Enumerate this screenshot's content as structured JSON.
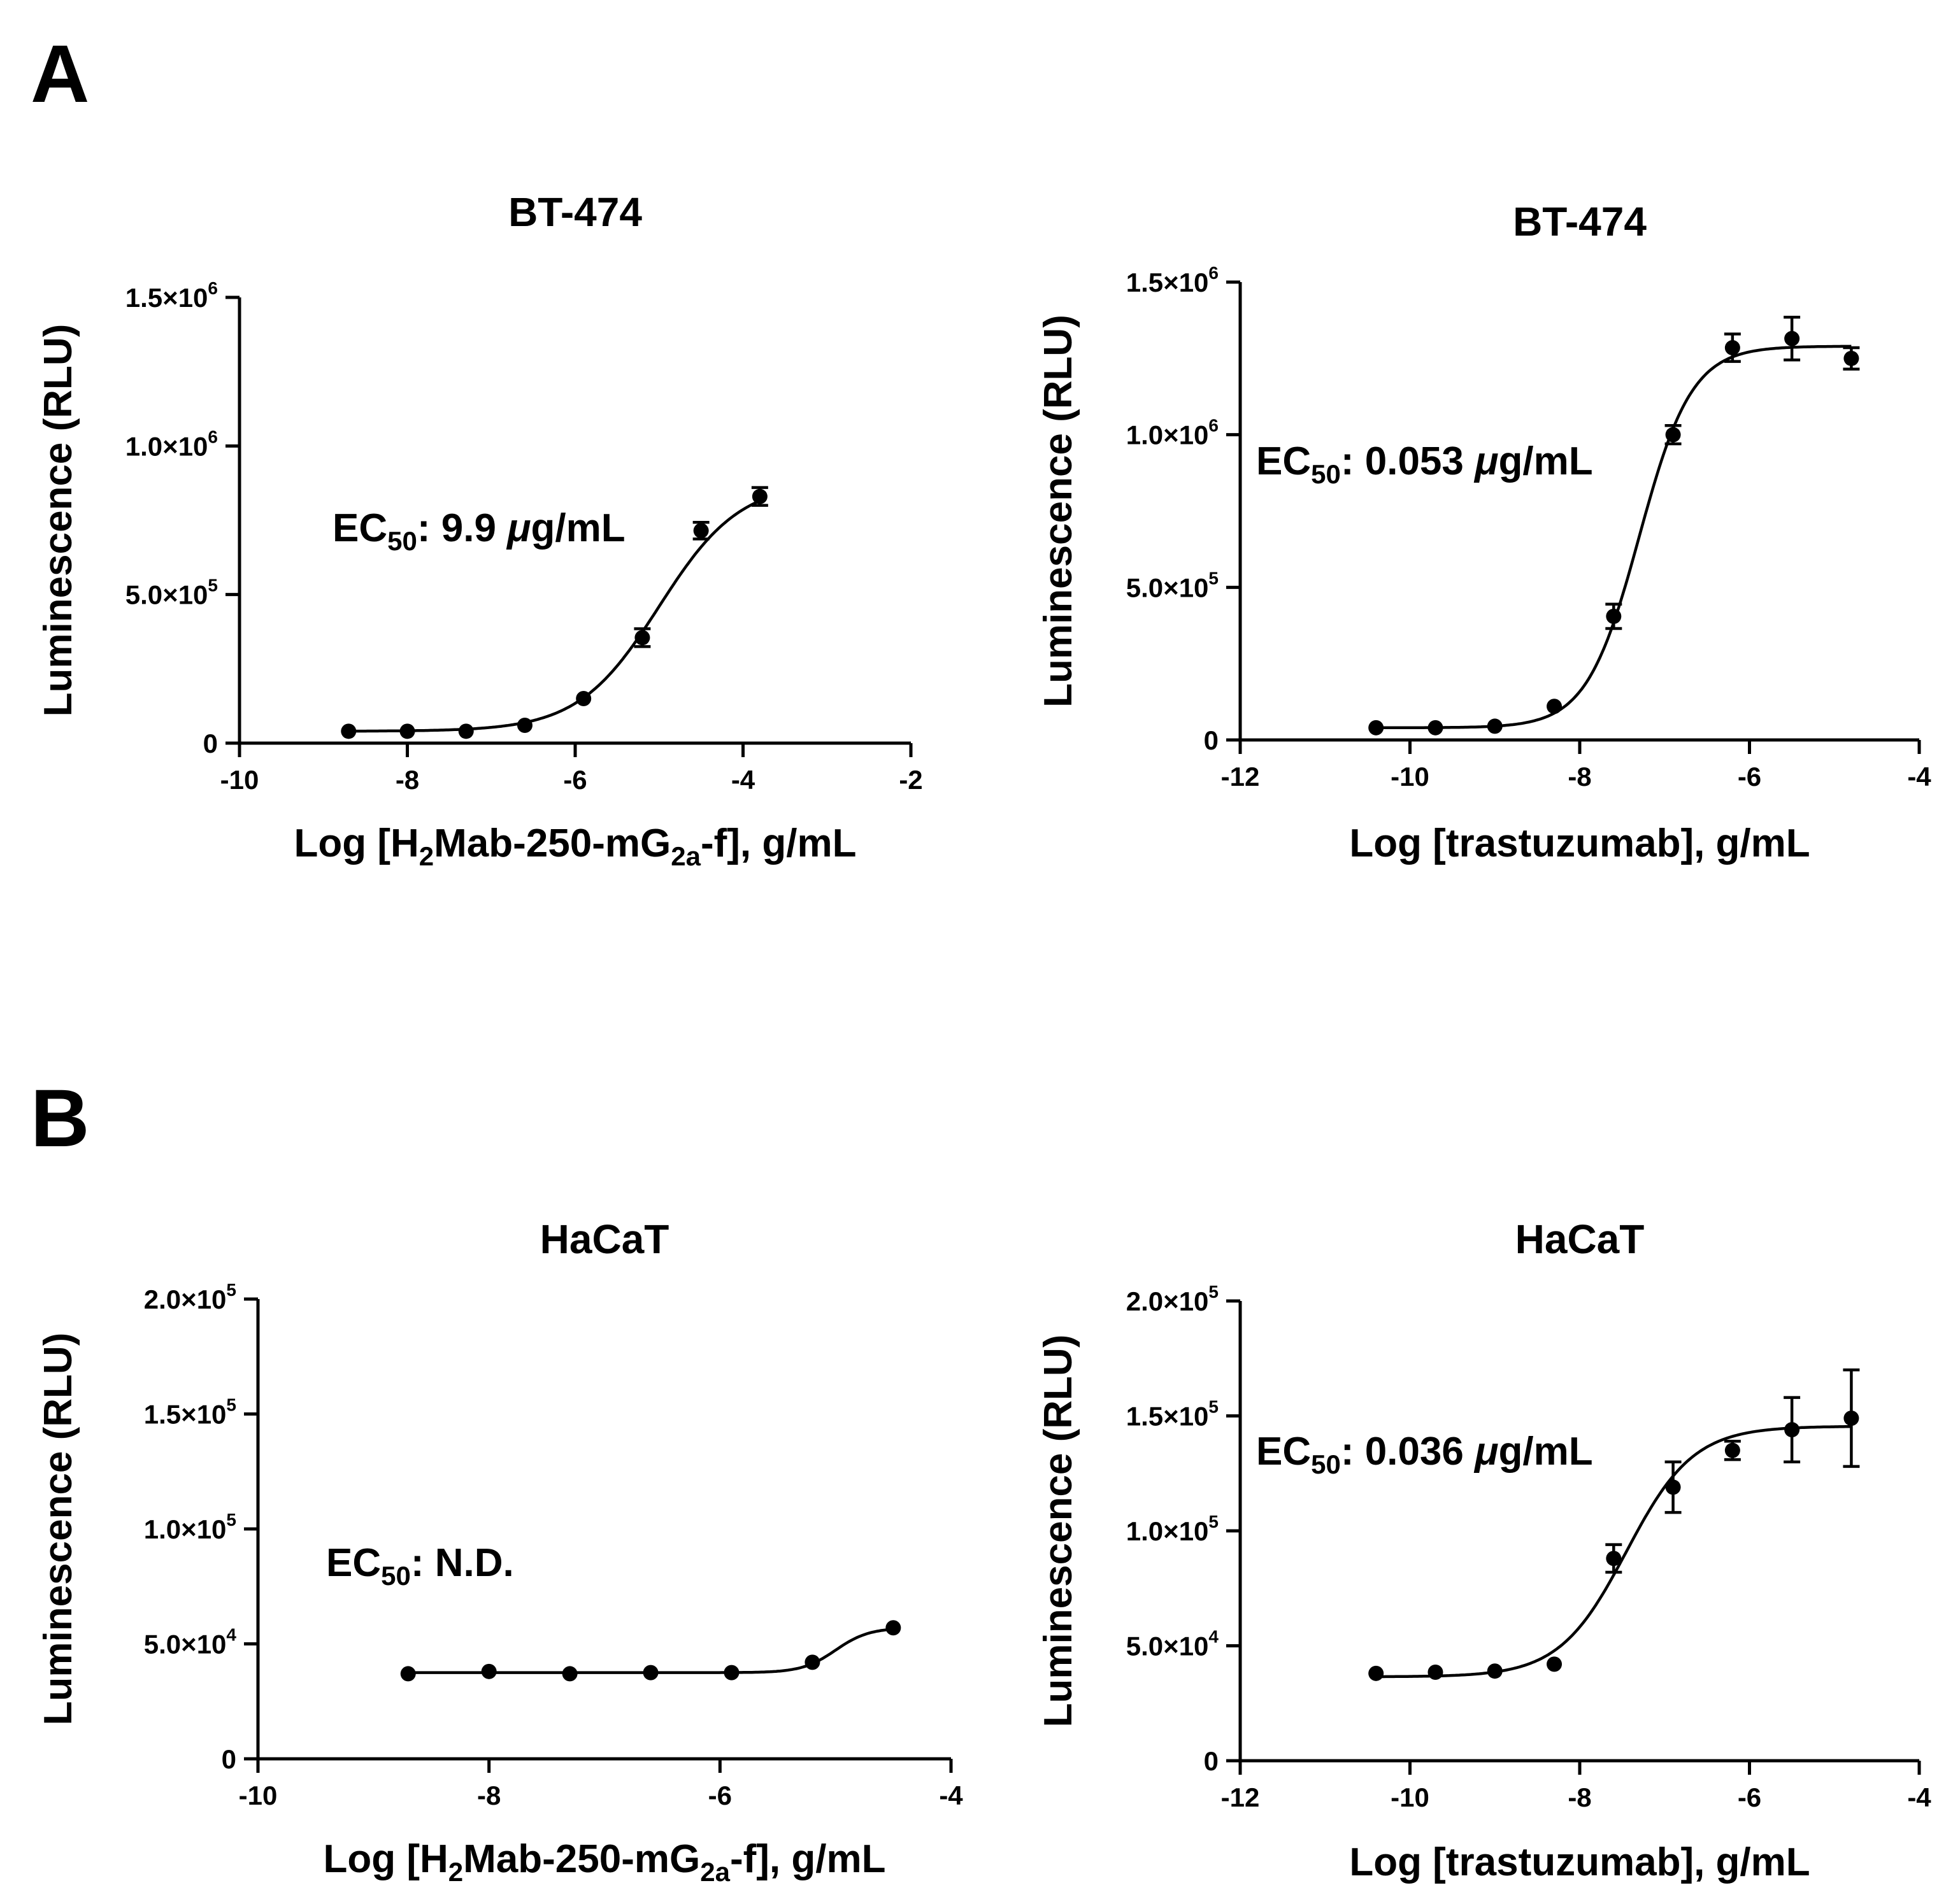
{
  "panel_letters": [
    "A",
    "B"
  ],
  "chart_data": [
    {
      "type": "scatter",
      "panel": "A",
      "title": "BT-474",
      "ylabel": "Luminescence (RLU)",
      "xlabel": "Log [H2Mab-250-mG2a-f], g/mL",
      "xlabel_parts": [
        {
          "t": "Log [H"
        },
        {
          "t": "2",
          "s": "sub"
        },
        {
          "t": "Mab-250-mG"
        },
        {
          "t": "2a",
          "s": "sub"
        },
        {
          "t": "-f], g/mL"
        }
      ],
      "annotation": {
        "prefix": "EC",
        "sub": "50",
        "text": ": 9.9 ",
        "mu": "μ",
        "unit": "g/mL"
      },
      "xlim": [
        -10,
        -2
      ],
      "ylim": [
        0,
        1500000
      ],
      "x_ticks": [
        {
          "v": -10,
          "label": "-10"
        },
        {
          "v": -8,
          "label": "-8"
        },
        {
          "v": -6,
          "label": "-6"
        },
        {
          "v": -4,
          "label": "-4"
        },
        {
          "v": -2,
          "label": "-2"
        }
      ],
      "y_ticks": [
        {
          "v": 0,
          "mant": "0",
          "exp": ""
        },
        {
          "v": 500000,
          "mant": "5.0×10",
          "exp": "5"
        },
        {
          "v": 1000000,
          "mant": "1.0×10",
          "exp": "6"
        },
        {
          "v": 1500000,
          "mant": "1.5×10",
          "exp": "6"
        }
      ],
      "points": [
        {
          "x": -8.7,
          "y": 40000,
          "err": 8000
        },
        {
          "x": -8.0,
          "y": 40000,
          "err": 8000
        },
        {
          "x": -7.3,
          "y": 40000,
          "err": 8000
        },
        {
          "x": -6.6,
          "y": 60000,
          "err": 8000
        },
        {
          "x": -5.9,
          "y": 150000,
          "err": 12000
        },
        {
          "x": -5.2,
          "y": 355000,
          "err": 30000
        },
        {
          "x": -4.5,
          "y": 715000,
          "err": 28000
        },
        {
          "x": -3.8,
          "y": 830000,
          "err": 30000
        }
      ],
      "fit": {
        "bottom": 40000,
        "top": 880000,
        "logec50": -5.0,
        "hill": 0.9
      }
    },
    {
      "type": "scatter",
      "panel": "A",
      "title": "BT-474",
      "ylabel": "Luminescence (RLU)",
      "xlabel": "Log [trastuzumab], g/mL",
      "xlabel_parts": [
        {
          "t": "Log [trastuzumab], g/mL"
        }
      ],
      "annotation": {
        "prefix": "EC",
        "sub": "50",
        "text": ": 0.053 ",
        "mu": "μ",
        "unit": "g/mL"
      },
      "xlim": [
        -12,
        -4
      ],
      "ylim": [
        0,
        1500000
      ],
      "x_ticks": [
        {
          "v": -12,
          "label": "-12"
        },
        {
          "v": -10,
          "label": "-10"
        },
        {
          "v": -8,
          "label": "-8"
        },
        {
          "v": -6,
          "label": "-6"
        },
        {
          "v": -4,
          "label": "-4"
        }
      ],
      "y_ticks": [
        {
          "v": 0,
          "mant": "0",
          "exp": ""
        },
        {
          "v": 500000,
          "mant": "5.0×10",
          "exp": "5"
        },
        {
          "v": 1000000,
          "mant": "1.0×10",
          "exp": "6"
        },
        {
          "v": 1500000,
          "mant": "1.5×10",
          "exp": "6"
        }
      ],
      "points": [
        {
          "x": -10.4,
          "y": 40000,
          "err": 8000
        },
        {
          "x": -9.7,
          "y": 40000,
          "err": 8000
        },
        {
          "x": -9.0,
          "y": 45000,
          "err": 8000
        },
        {
          "x": -8.3,
          "y": 110000,
          "err": 10000
        },
        {
          "x": -7.6,
          "y": 405000,
          "err": 40000
        },
        {
          "x": -6.9,
          "y": 1000000,
          "err": 30000
        },
        {
          "x": -6.2,
          "y": 1285000,
          "err": 45000
        },
        {
          "x": -5.5,
          "y": 1315000,
          "err": 70000
        },
        {
          "x": -4.8,
          "y": 1250000,
          "err": 35000
        }
      ],
      "fit": {
        "bottom": 40000,
        "top": 1290000,
        "logec50": -7.3,
        "hill": 1.4
      }
    },
    {
      "type": "scatter",
      "panel": "B",
      "title": "HaCaT",
      "ylabel": "Luminescence (RLU)",
      "xlabel": "Log [H2Mab-250-mG2a-f], g/mL",
      "xlabel_parts": [
        {
          "t": "Log [H"
        },
        {
          "t": "2",
          "s": "sub"
        },
        {
          "t": "Mab-250-mG"
        },
        {
          "t": "2a",
          "s": "sub"
        },
        {
          "t": "-f], g/mL"
        }
      ],
      "annotation": {
        "prefix": "EC",
        "sub": "50",
        "text": ": N.D.",
        "mu": "",
        "unit": ""
      },
      "xlim": [
        -10,
        -4
      ],
      "ylim": [
        0,
        200000
      ],
      "x_ticks": [
        {
          "v": -10,
          "label": "-10"
        },
        {
          "v": -8,
          "label": "-8"
        },
        {
          "v": -6,
          "label": "-6"
        },
        {
          "v": -4,
          "label": "-4"
        }
      ],
      "y_ticks": [
        {
          "v": 0,
          "mant": "0",
          "exp": ""
        },
        {
          "v": 50000,
          "mant": "5.0×10",
          "exp": "4"
        },
        {
          "v": 100000,
          "mant": "1.0×10",
          "exp": "5"
        },
        {
          "v": 150000,
          "mant": "1.5×10",
          "exp": "5"
        },
        {
          "v": 200000,
          "mant": "2.0×10",
          "exp": "5"
        }
      ],
      "points": [
        {
          "x": -8.7,
          "y": 37000,
          "err": 1000
        },
        {
          "x": -8.0,
          "y": 38000,
          "err": 1000
        },
        {
          "x": -7.3,
          "y": 37000,
          "err": 1000
        },
        {
          "x": -6.6,
          "y": 37500,
          "err": 1000
        },
        {
          "x": -5.9,
          "y": 37500,
          "err": 1000
        },
        {
          "x": -5.2,
          "y": 42000,
          "err": 1500
        },
        {
          "x": -4.5,
          "y": 57000,
          "err": 1500
        }
      ],
      "fit": {
        "bottom": 37500,
        "top": 57000,
        "logec50": -5.0,
        "hill": 3.0
      }
    },
    {
      "type": "scatter",
      "panel": "B",
      "title": "HaCaT",
      "ylabel": "Luminescence (RLU)",
      "xlabel": "Log [trastuzumab], g/mL",
      "xlabel_parts": [
        {
          "t": "Log [trastuzumab], g/mL"
        }
      ],
      "annotation": {
        "prefix": "EC",
        "sub": "50",
        "text": ": 0.036 ",
        "mu": "μ",
        "unit": "g/mL"
      },
      "xlim": [
        -12,
        -4
      ],
      "ylim": [
        0,
        200000
      ],
      "x_ticks": [
        {
          "v": -12,
          "label": "-12"
        },
        {
          "v": -10,
          "label": "-10"
        },
        {
          "v": -8,
          "label": "-8"
        },
        {
          "v": -6,
          "label": "-6"
        },
        {
          "v": -4,
          "label": "-4"
        }
      ],
      "y_ticks": [
        {
          "v": 0,
          "mant": "0",
          "exp": ""
        },
        {
          "v": 50000,
          "mant": "5.0×10",
          "exp": "4"
        },
        {
          "v": 100000,
          "mant": "1.0×10",
          "exp": "5"
        },
        {
          "v": 150000,
          "mant": "1.5×10",
          "exp": "5"
        },
        {
          "v": 200000,
          "mant": "2.0×10",
          "exp": "5"
        }
      ],
      "points": [
        {
          "x": -10.4,
          "y": 38000,
          "err": 1000
        },
        {
          "x": -9.7,
          "y": 38500,
          "err": 1000
        },
        {
          "x": -9.0,
          "y": 39000,
          "err": 1000
        },
        {
          "x": -8.3,
          "y": 42000,
          "err": 1500
        },
        {
          "x": -7.6,
          "y": 88000,
          "err": 6000
        },
        {
          "x": -6.9,
          "y": 119000,
          "err": 11000
        },
        {
          "x": -6.2,
          "y": 135000,
          "err": 4000
        },
        {
          "x": -5.5,
          "y": 144000,
          "err": 14000
        },
        {
          "x": -4.8,
          "y": 149000,
          "err": 21000
        }
      ],
      "fit": {
        "bottom": 36500,
        "top": 145500,
        "logec50": -7.45,
        "hill": 1.1
      }
    }
  ]
}
